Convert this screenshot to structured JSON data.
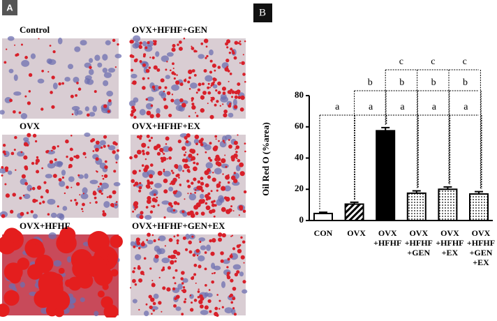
{
  "panel_a": {
    "label": "A",
    "images": [
      "Control",
      "OVX+HFHF+GEN",
      "OVX",
      "OVX+HFHF+EX",
      "OVX+HFHF",
      "OVX+HFHF+GEN+EX"
    ]
  },
  "chart_data": {
    "type": "bar",
    "panel_label": "B",
    "y_label": "Oil Red O (%area)",
    "categories": [
      "CON",
      "OVX",
      "OVX\n+HFHF",
      "OVX\n+HFHF\n+GEN",
      "OVX\n+HFHF\n+EX",
      "OVX\n+HFHF\n+GEN\n+EX"
    ],
    "values": [
      4.5,
      10.5,
      57.5,
      17.5,
      20,
      17
    ],
    "errors": [
      0.8,
      1.2,
      2,
      1.5,
      1.5,
      1.5
    ],
    "fills": [
      "white",
      "hatch",
      "black",
      "dots",
      "dots",
      "dots"
    ],
    "ylim": [
      0,
      80
    ],
    "yticks": [
      0,
      20,
      40,
      60,
      80
    ],
    "annotations": [
      "a",
      "a",
      "a",
      "a",
      "a",
      "b",
      "b",
      "b",
      "b",
      "c",
      "c",
      "c"
    ]
  }
}
